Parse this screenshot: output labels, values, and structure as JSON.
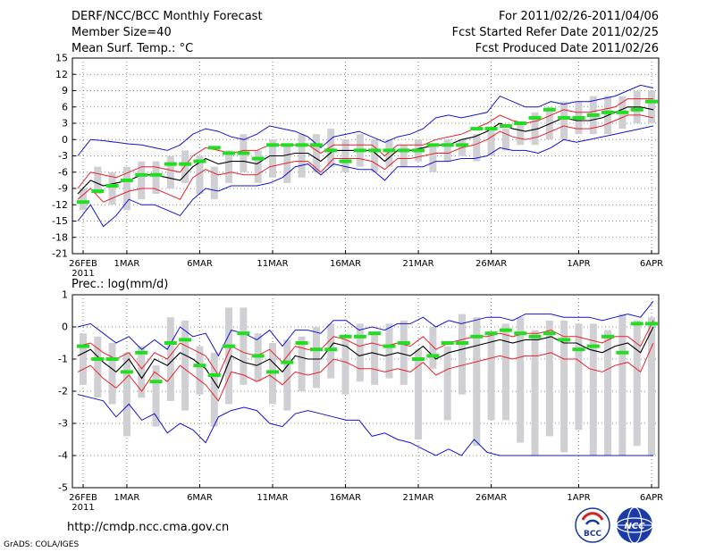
{
  "header": {
    "title": "DERF/NCC/BCC Monthly Forecast",
    "member": "Member Size=40",
    "variable": "Mean Surf. Temp.: °C",
    "period": "For 2011/02/26-2011/04/06",
    "started": "Fcst Started Refer Date 2011/02/25",
    "produced": "Fcst Produced Date 2011/02/26"
  },
  "footer": {
    "url": "http://cmdp.ncc.cma.gov.cn",
    "grads": "GrADS: COLA/IGES",
    "logo_bcc": "BCC",
    "logo_ncc": "NCC"
  },
  "colors": {
    "mean": "#000000",
    "spread": "#e8202a",
    "extreme": "#1414d2",
    "box": "#cfcfd4",
    "clim": "#22dd22"
  },
  "chart_data": [
    {
      "type": "line",
      "title": "Mean Surf. Temp.: °C",
      "ylabel": "°C",
      "ylim": [
        -21,
        15
      ],
      "yticks": [
        15,
        12,
        9,
        6,
        3,
        0,
        -3,
        -6,
        -9,
        -12,
        -15,
        -18,
        -21
      ],
      "xticks": [
        {
          "day": 0,
          "label": "26FEB",
          "sub": "2011"
        },
        {
          "day": 3,
          "label": "1MAR"
        },
        {
          "day": 8,
          "label": "6MAR"
        },
        {
          "day": 13,
          "label": "11MAR"
        },
        {
          "day": 18,
          "label": "16MAR"
        },
        {
          "day": 23,
          "label": "21MAR"
        },
        {
          "day": 28,
          "label": "26MAR"
        },
        {
          "day": 34,
          "label": "1APR"
        },
        {
          "day": 39,
          "label": "6APR"
        }
      ],
      "grid": true,
      "days": 40,
      "series": [
        {
          "name": "ensemble max",
          "color_key": "extreme",
          "values": [
            -3,
            0,
            -0.2,
            -0.5,
            -0.8,
            -1,
            -1.5,
            -2,
            -1,
            1,
            2,
            1.5,
            0.5,
            0,
            1,
            2.5,
            2,
            1.5,
            0.5,
            -1.5,
            0.5,
            1,
            1.5,
            0.5,
            -0.5,
            0.5,
            1,
            2,
            4,
            4.5,
            4,
            4.5,
            5,
            8,
            7,
            6,
            6,
            7,
            6.5,
            7,
            7,
            7.5,
            8,
            9,
            10,
            9.5
          ]
        },
        {
          "name": "mean + spread",
          "color_key": "spread",
          "values": [
            -9,
            -6,
            -6.5,
            -7,
            -6,
            -5,
            -5,
            -5.5,
            -6,
            -3,
            -1.5,
            -2,
            -2.5,
            -2,
            -2,
            -1,
            -1,
            -1,
            -1,
            -2.5,
            -1,
            -1,
            -1,
            -1,
            -3,
            -1,
            -1,
            -1,
            0,
            0.5,
            1,
            2,
            3,
            4.5,
            3.5,
            3,
            3.5,
            4.5,
            5.5,
            5,
            5,
            5.5,
            6,
            7.5,
            7.5,
            7.5
          ]
        },
        {
          "name": "ensemble mean",
          "color_key": "mean",
          "values": [
            -10,
            -7.5,
            -8.5,
            -8,
            -7.5,
            -6.5,
            -6.5,
            -7,
            -7.5,
            -5,
            -3.5,
            -4.5,
            -4,
            -4,
            -4.5,
            -3,
            -3,
            -2.5,
            -2.5,
            -4,
            -2,
            -2,
            -2,
            -2,
            -4,
            -2,
            -2,
            -1.5,
            -1,
            -1,
            0,
            0.5,
            1.5,
            3,
            2,
            1.5,
            2,
            3,
            4,
            3.5,
            3.5,
            4,
            5,
            6,
            6,
            5.5
          ]
        },
        {
          "name": "mean - spread",
          "color_key": "spread",
          "values": [
            -11,
            -9,
            -11.5,
            -10.5,
            -9.5,
            -9,
            -9,
            -10,
            -11,
            -7,
            -5.5,
            -6.5,
            -6,
            -6.5,
            -6.5,
            -5,
            -4.5,
            -4,
            -4,
            -6,
            -3.5,
            -3.5,
            -3.5,
            -4,
            -5.5,
            -3.5,
            -3.5,
            -3,
            -2.5,
            -2.5,
            -1.5,
            -1,
            0,
            1.5,
            0.5,
            0,
            0.5,
            1.5,
            2.5,
            2,
            2,
            2.5,
            3.5,
            4.5,
            4.5,
            4
          ]
        },
        {
          "name": "ensemble min",
          "color_key": "extreme",
          "values": [
            -15,
            -12,
            -16,
            -14,
            -11,
            -12,
            -12,
            -13,
            -14,
            -11,
            -9,
            -9.5,
            -8.5,
            -8.5,
            -8.5,
            -8,
            -7,
            -5,
            -4.5,
            -6.5,
            -4.5,
            -5,
            -5.5,
            -5.5,
            -7.5,
            -5,
            -5,
            -5,
            -4,
            -4,
            -3.5,
            -3.5,
            -3,
            -1.5,
            -2,
            -2,
            -2.5,
            -1.5,
            0,
            -0.5,
            0,
            0.5,
            1,
            1.5,
            2,
            2.5
          ]
        }
      ],
      "boxes": [
        [
          -13,
          -9
        ],
        [
          -10,
          -5
        ],
        [
          -12,
          -6
        ],
        [
          -13,
          -5
        ],
        [
          -11,
          -4
        ],
        [
          -10,
          -4
        ],
        [
          -9,
          -3
        ],
        [
          -8,
          -2
        ],
        [
          -10,
          -3
        ],
        [
          -11,
          -5
        ],
        [
          -8,
          -2
        ],
        [
          -6,
          1
        ],
        [
          -8,
          -2
        ],
        [
          -7,
          0
        ],
        [
          -8,
          -1
        ],
        [
          -7,
          1
        ],
        [
          -6,
          1
        ],
        [
          -5,
          2
        ],
        [
          -6,
          0
        ],
        [
          -5,
          1
        ],
        [
          -6,
          0
        ],
        [
          -5,
          0
        ],
        [
          -5,
          -1
        ],
        [
          -4,
          0
        ],
        [
          -6,
          -1
        ],
        [
          -4,
          0
        ],
        [
          -3,
          0
        ],
        [
          -4,
          1
        ],
        [
          -3,
          2
        ],
        [
          -2,
          2
        ],
        [
          -1,
          3
        ],
        [
          -1,
          5
        ],
        [
          0,
          6
        ],
        [
          0,
          7
        ],
        [
          1,
          7
        ],
        [
          1,
          8
        ],
        [
          1,
          8
        ],
        [
          2,
          8
        ],
        [
          3,
          9
        ],
        [
          3,
          9
        ]
      ],
      "clim": [
        -11.5,
        -9.5,
        -8.5,
        -7.5,
        -6.5,
        -6.5,
        -4.5,
        -4.5,
        -4,
        -1.5,
        -2.5,
        -2.5,
        -3.5,
        -1,
        -1,
        -1,
        -1,
        -2,
        -4,
        -2,
        -2,
        -2,
        -2,
        -2,
        -1,
        -1,
        -1,
        2,
        2,
        2.5,
        3,
        4,
        5.5,
        4,
        4,
        4.5,
        5,
        5,
        5.5,
        7
      ],
      "note": "40 daily boxes; lines sampled at 46 points across 26FEB-6APR"
    },
    {
      "type": "line",
      "title": "Prec.: log(mm/d)",
      "ylabel": "log(mm/d)",
      "ylim": [
        -5,
        1
      ],
      "yticks": [
        1,
        0,
        -1,
        -2,
        -3,
        -4,
        -5
      ],
      "xticks": [
        {
          "day": 0,
          "label": "26FEB",
          "sub": "2011"
        },
        {
          "day": 3,
          "label": "1MAR"
        },
        {
          "day": 8,
          "label": "6MAR"
        },
        {
          "day": 13,
          "label": "11MAR"
        },
        {
          "day": 18,
          "label": "16MAR"
        },
        {
          "day": 23,
          "label": "21MAR"
        },
        {
          "day": 28,
          "label": "26MAR"
        },
        {
          "day": 34,
          "label": "1APR"
        },
        {
          "day": 39,
          "label": "6APR"
        }
      ],
      "grid": true,
      "days": 40,
      "series": [
        {
          "name": "ensemble max",
          "color_key": "extreme",
          "values": [
            0,
            0.1,
            -0.2,
            -0.5,
            -0.3,
            -0.7,
            -0.4,
            -0.7,
            0,
            -0.3,
            -0.2,
            -0.9,
            -0.1,
            -0.2,
            -0.4,
            -0.1,
            -0.6,
            -0.1,
            -0.1,
            -0.2,
            0.2,
            0.2,
            -0.1,
            0,
            -0.1,
            0.1,
            0.1,
            0.3,
            0,
            0.2,
            0.1,
            0.2,
            0.3,
            0.3,
            0.2,
            0.4,
            0.4,
            0.4,
            0.3,
            0.3,
            0.3,
            0.2,
            0.3,
            0.4,
            0.3,
            0.8
          ]
        },
        {
          "name": "mean + spread",
          "color_key": "spread",
          "values": [
            -0.6,
            -0.5,
            -0.8,
            -1,
            -0.8,
            -1.3,
            -0.8,
            -1,
            -0.5,
            -0.7,
            -0.9,
            -1.5,
            -0.6,
            -0.8,
            -0.9,
            -0.7,
            -1.1,
            -0.6,
            -0.7,
            -0.7,
            -0.3,
            -0.4,
            -0.6,
            -0.5,
            -0.6,
            -0.5,
            -0.6,
            -0.3,
            -0.7,
            -0.5,
            -0.4,
            -0.3,
            -0.3,
            -0.2,
            -0.3,
            -0.2,
            -0.2,
            -0.1,
            -0.3,
            -0.3,
            -0.4,
            -0.5,
            -0.3,
            -0.3,
            -0.6,
            0.2
          ]
        },
        {
          "name": "ensemble mean",
          "color_key": "mean",
          "values": [
            -0.9,
            -0.7,
            -1.1,
            -1.4,
            -1,
            -1.6,
            -1,
            -1.2,
            -0.8,
            -1,
            -1.3,
            -1.9,
            -0.9,
            -1.1,
            -1.2,
            -1,
            -1.4,
            -0.9,
            -1,
            -1,
            -0.5,
            -0.6,
            -0.9,
            -0.8,
            -0.9,
            -0.8,
            -0.9,
            -0.6,
            -1,
            -0.8,
            -0.7,
            -0.6,
            -0.5,
            -0.4,
            -0.5,
            -0.4,
            -0.4,
            -0.3,
            -0.5,
            -0.5,
            -0.7,
            -0.8,
            -0.6,
            -0.5,
            -0.8,
            0
          ]
        },
        {
          "name": "mean - spread",
          "color_key": "spread",
          "values": [
            -1.4,
            -1.2,
            -1.6,
            -1.9,
            -1.5,
            -2,
            -1.4,
            -1.7,
            -1.2,
            -1.5,
            -1.8,
            -2.3,
            -1.4,
            -1.5,
            -1.7,
            -1.5,
            -1.8,
            -1.4,
            -1.5,
            -1.4,
            -1,
            -1.1,
            -1.3,
            -1.3,
            -1.4,
            -1.3,
            -1.4,
            -1.1,
            -1.5,
            -1.3,
            -1.2,
            -1.1,
            -1,
            -0.9,
            -1,
            -0.9,
            -0.9,
            -0.8,
            -1,
            -1,
            -1.3,
            -1.4,
            -1.2,
            -1.1,
            -1.4,
            -0.5
          ]
        },
        {
          "name": "ensemble min",
          "color_key": "extreme",
          "values": [
            -2.1,
            -2.2,
            -2.3,
            -2.8,
            -2.4,
            -2.9,
            -2.7,
            -3.3,
            -3,
            -3.2,
            -3.6,
            -2.8,
            -2.6,
            -2.5,
            -2.6,
            -3,
            -3.1,
            -2.7,
            -2.6,
            -2.7,
            -2.8,
            -2.9,
            -2.9,
            -3.4,
            -3.3,
            -3.5,
            -3.6,
            -3.8,
            -4,
            -3.8,
            -4,
            -3.5,
            -3.9,
            -4,
            -4,
            -4,
            -4,
            -4,
            -4,
            -4,
            -4,
            -4,
            -4,
            -4,
            -4,
            -4
          ]
        }
      ],
      "boxes": [
        [
          -1.8,
          -0.2
        ],
        [
          -2.2,
          -0.3
        ],
        [
          -2.4,
          -0.5
        ],
        [
          -3.4,
          -0.8
        ],
        [
          -2.2,
          -0.6
        ],
        [
          -3.1,
          -1.2
        ],
        [
          -2.3,
          0.3
        ],
        [
          -2.6,
          0.2
        ],
        [
          -2.1,
          -0.6
        ],
        [
          -3.1,
          -0.8
        ],
        [
          -2.4,
          0.6
        ],
        [
          -1.8,
          0.6
        ],
        [
          -1.7,
          -0.2
        ],
        [
          -2.4,
          -0.5
        ],
        [
          -2.6,
          -0.4
        ],
        [
          -2,
          -0.3
        ],
        [
          -1.9,
          0
        ],
        [
          -1.6,
          0.1
        ],
        [
          -2.1,
          -0.4
        ],
        [
          -1.7,
          0.1
        ],
        [
          -1.8,
          -0.2
        ],
        [
          -1.6,
          0.1
        ],
        [
          -1.8,
          0.2
        ],
        [
          -3.5,
          -0.7
        ],
        [
          -1.3,
          0
        ],
        [
          -2.9,
          -0.6
        ],
        [
          -2.1,
          0.4
        ],
        [
          -3.7,
          0.3
        ],
        [
          -2.9,
          -0.2
        ],
        [
          -2.9,
          0.1
        ],
        [
          -3.6,
          0.3
        ],
        [
          -4,
          -0.1
        ],
        [
          -3.4,
          0.2
        ],
        [
          -3.9,
          0.2
        ],
        [
          -3.2,
          0.1
        ],
        [
          -4,
          0.1
        ],
        [
          -4,
          -0.1
        ],
        [
          -4,
          0.4
        ],
        [
          -3.7,
          0.2
        ],
        [
          -4,
          0.3
        ]
      ],
      "clim": [
        -0.6,
        -1,
        -1,
        -1.4,
        -0.8,
        -1.7,
        -0.5,
        -0.4,
        -1.2,
        -1.5,
        -0.6,
        -0.2,
        -0.9,
        -1.4,
        -1.1,
        -0.5,
        -0.7,
        -0.7,
        -0.3,
        -0.3,
        -0.2,
        -0.6,
        -0.5,
        -1,
        -0.9,
        -0.5,
        -0.5,
        -0.3,
        -0.2,
        -0.1,
        -0.2,
        -0.3,
        -0.2,
        -0.4,
        -0.7,
        -0.6,
        -0.3,
        -0.8,
        0.1,
        0.1
      ],
      "note": "40 daily boxes; lines sampled at 46 points across 26FEB-6APR"
    }
  ]
}
